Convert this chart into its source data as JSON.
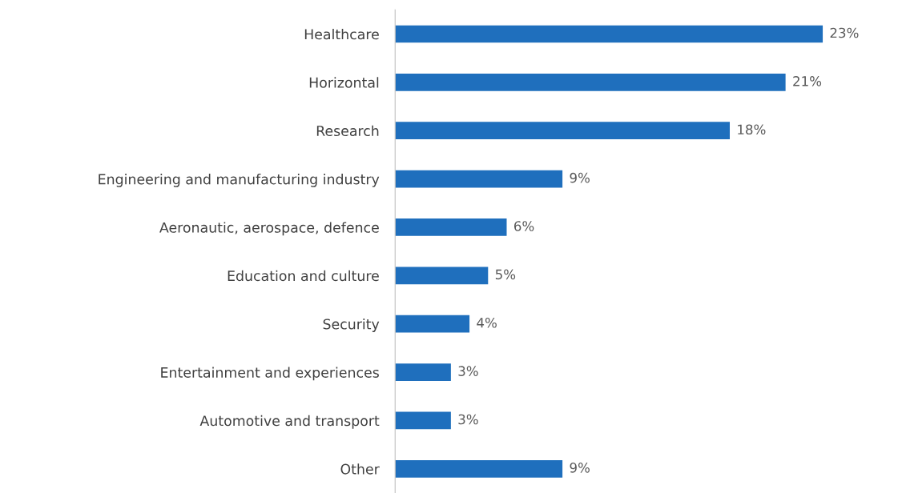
{
  "chart_data": {
    "type": "bar",
    "orientation": "horizontal",
    "categories": [
      "Healthcare",
      "Horizontal",
      "Research",
      "Engineering and manufacturing industry",
      "Aeronautic, aerospace, defence",
      "Education and culture",
      "Security",
      "Entertainment and experiences",
      "Automotive and transport",
      "Other"
    ],
    "values": [
      23,
      21,
      18,
      9,
      6,
      5,
      4,
      3,
      3,
      9
    ],
    "value_labels": [
      "23%",
      "21%",
      "18%",
      "9%",
      "6%",
      "5%",
      "4%",
      "3%",
      "3%",
      "9%"
    ],
    "color": "#1f6fbd",
    "grid": false,
    "legend": false
  }
}
